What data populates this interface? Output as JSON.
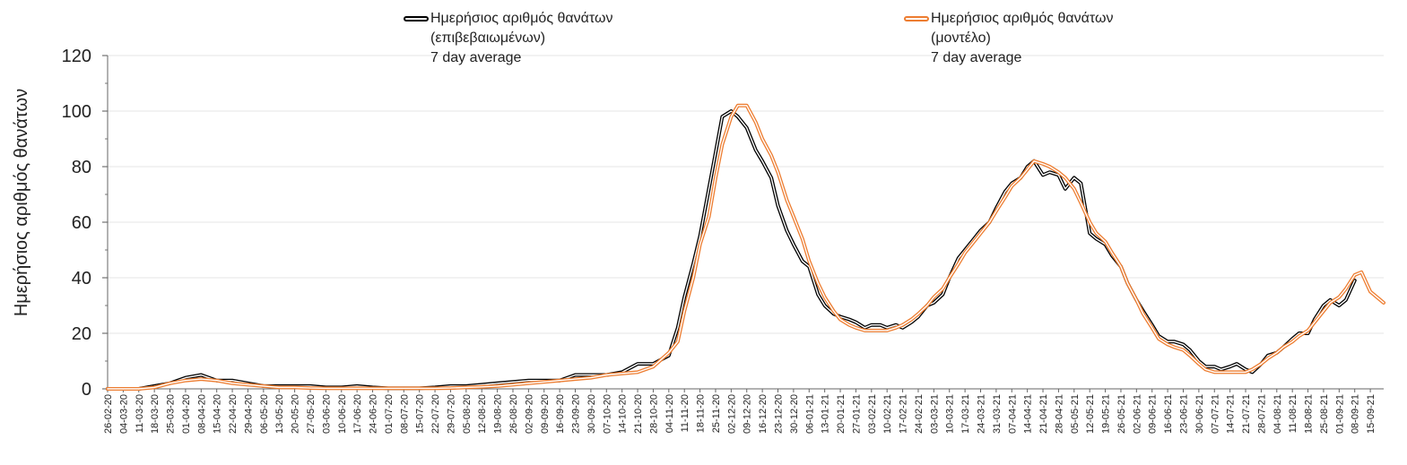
{
  "legend": {
    "series_a": {
      "line1": "Ημερήσιος αριθμός θανάτων",
      "line2": "(επιβεβαιωμένων)",
      "line3": "7 day average"
    },
    "series_b": {
      "line1": "Ημερήσιος αριθμός θανάτων",
      "line2": "(μοντέλο)",
      "line3": "7 day average"
    }
  },
  "chart_data": {
    "type": "line",
    "title": "",
    "xlabel": "",
    "ylabel": "Ημερήσιος αριθμός θανάτων",
    "ylim": [
      0,
      120
    ],
    "yticks": [
      0,
      20,
      40,
      60,
      80,
      100,
      120
    ],
    "grid": true,
    "legend_position": "top",
    "x_start": "2020-02-26",
    "x_end": "2021-09-21",
    "tick_labels": [
      "26-02-20",
      "04-03-20",
      "11-03-20",
      "18-03-20",
      "25-03-20",
      "01-04-20",
      "08-04-20",
      "15-04-20",
      "22-04-20",
      "29-04-20",
      "06-05-20",
      "13-05-20",
      "20-05-20",
      "27-05-20",
      "03-06-20",
      "10-06-20",
      "17-06-20",
      "24-06-20",
      "01-07-20",
      "08-07-20",
      "15-07-20",
      "22-07-20",
      "29-07-20",
      "05-08-20",
      "12-08-20",
      "19-08-20",
      "26-08-20",
      "02-09-20",
      "09-09-20",
      "16-09-20",
      "23-09-20",
      "30-09-20",
      "07-10-20",
      "14-10-20",
      "21-10-20",
      "28-10-20",
      "04-11-20",
      "11-11-20",
      "18-11-20",
      "25-11-20",
      "02-12-20",
      "09-12-20",
      "16-12-20",
      "23-12-20",
      "30-12-20",
      "06-01-21",
      "13-01-21",
      "20-01-21",
      "27-01-21",
      "03-02-21",
      "10-02-21",
      "17-02-21",
      "24-02-21",
      "03-03-21",
      "10-03-21",
      "17-03-21",
      "24-03-21",
      "31-03-21",
      "07-04-21",
      "14-04-21",
      "21-04-21",
      "28-04-21",
      "05-05-21",
      "12-05-21",
      "19-05-21",
      "26-05-21",
      "02-06-21",
      "09-06-21",
      "16-06-21",
      "23-06-21",
      "30-06-21",
      "07-07-21",
      "14-07-21",
      "21-07-21",
      "28-07-21",
      "04-08-21",
      "11-08-21",
      "18-08-21",
      "25-08-21",
      "01-09-21",
      "08-09-21",
      "15-09-21"
    ],
    "series": [
      {
        "name": "Ημερήσιος αριθμός θανάτων (επιβεβαιωμένων) 7 day average",
        "color": "#000000",
        "points": [
          [
            "2020-02-26",
            0
          ],
          [
            "2020-03-11",
            0
          ],
          [
            "2020-03-18",
            1
          ],
          [
            "2020-03-25",
            2
          ],
          [
            "2020-04-01",
            4
          ],
          [
            "2020-04-08",
            5
          ],
          [
            "2020-04-15",
            3
          ],
          [
            "2020-04-22",
            3
          ],
          [
            "2020-04-29",
            2
          ],
          [
            "2020-05-06",
            1
          ],
          [
            "2020-05-13",
            1
          ],
          [
            "2020-05-20",
            1
          ],
          [
            "2020-05-27",
            1
          ],
          [
            "2020-06-03",
            0.5
          ],
          [
            "2020-06-10",
            0.5
          ],
          [
            "2020-06-17",
            1
          ],
          [
            "2020-06-24",
            0.5
          ],
          [
            "2020-07-01",
            0.2
          ],
          [
            "2020-07-08",
            0.2
          ],
          [
            "2020-07-15",
            0.2
          ],
          [
            "2020-07-22",
            0.5
          ],
          [
            "2020-07-29",
            1
          ],
          [
            "2020-08-05",
            1
          ],
          [
            "2020-08-12",
            1.5
          ],
          [
            "2020-08-19",
            2
          ],
          [
            "2020-08-26",
            2.5
          ],
          [
            "2020-09-02",
            3
          ],
          [
            "2020-09-09",
            3
          ],
          [
            "2020-09-16",
            3
          ],
          [
            "2020-09-23",
            5
          ],
          [
            "2020-09-30",
            5
          ],
          [
            "2020-10-07",
            5
          ],
          [
            "2020-10-14",
            6
          ],
          [
            "2020-10-21",
            9
          ],
          [
            "2020-10-28",
            9
          ],
          [
            "2020-11-04",
            12
          ],
          [
            "2020-11-08",
            22
          ],
          [
            "2020-11-11",
            33
          ],
          [
            "2020-11-15",
            45
          ],
          [
            "2020-11-18",
            55
          ],
          [
            "2020-11-22",
            72
          ],
          [
            "2020-11-25",
            85
          ],
          [
            "2020-11-28",
            98
          ],
          [
            "2020-12-02",
            100
          ],
          [
            "2020-12-05",
            98
          ],
          [
            "2020-12-09",
            94
          ],
          [
            "2020-12-13",
            86
          ],
          [
            "2020-12-16",
            82
          ],
          [
            "2020-12-20",
            76
          ],
          [
            "2020-12-23",
            66
          ],
          [
            "2020-12-27",
            57
          ],
          [
            "2020-12-30",
            52
          ],
          [
            "2021-01-03",
            46
          ],
          [
            "2021-01-06",
            44
          ],
          [
            "2021-01-10",
            34
          ],
          [
            "2021-01-13",
            30
          ],
          [
            "2021-01-17",
            27
          ],
          [
            "2021-01-20",
            26
          ],
          [
            "2021-01-24",
            25
          ],
          [
            "2021-01-27",
            24
          ],
          [
            "2021-01-31",
            22
          ],
          [
            "2021-02-03",
            23
          ],
          [
            "2021-02-07",
            23
          ],
          [
            "2021-02-10",
            22
          ],
          [
            "2021-02-14",
            23
          ],
          [
            "2021-02-17",
            22
          ],
          [
            "2021-02-21",
            24
          ],
          [
            "2021-02-24",
            26
          ],
          [
            "2021-02-28",
            30
          ],
          [
            "2021-03-03",
            31
          ],
          [
            "2021-03-07",
            34
          ],
          [
            "2021-03-10",
            40
          ],
          [
            "2021-03-14",
            47
          ],
          [
            "2021-03-17",
            50
          ],
          [
            "2021-03-21",
            54
          ],
          [
            "2021-03-24",
            57
          ],
          [
            "2021-03-28",
            60
          ],
          [
            "2021-03-31",
            65
          ],
          [
            "2021-04-04",
            71
          ],
          [
            "2021-04-07",
            74
          ],
          [
            "2021-04-11",
            76
          ],
          [
            "2021-04-14",
            80
          ],
          [
            "2021-04-17",
            82
          ],
          [
            "2021-04-21",
            77
          ],
          [
            "2021-04-24",
            78
          ],
          [
            "2021-04-28",
            77
          ],
          [
            "2021-05-01",
            72
          ],
          [
            "2021-05-05",
            76
          ],
          [
            "2021-05-08",
            74
          ],
          [
            "2021-05-12",
            56
          ],
          [
            "2021-05-15",
            54
          ],
          [
            "2021-05-19",
            52
          ],
          [
            "2021-05-22",
            48
          ],
          [
            "2021-05-26",
            44
          ],
          [
            "2021-05-29",
            38
          ],
          [
            "2021-06-02",
            32
          ],
          [
            "2021-06-05",
            28
          ],
          [
            "2021-06-09",
            23
          ],
          [
            "2021-06-12",
            19
          ],
          [
            "2021-06-16",
            17
          ],
          [
            "2021-06-19",
            17
          ],
          [
            "2021-06-23",
            16
          ],
          [
            "2021-06-26",
            14
          ],
          [
            "2021-06-30",
            10
          ],
          [
            "2021-07-03",
            8
          ],
          [
            "2021-07-07",
            8
          ],
          [
            "2021-07-10",
            7
          ],
          [
            "2021-07-14",
            8
          ],
          [
            "2021-07-17",
            9
          ],
          [
            "2021-07-21",
            7
          ],
          [
            "2021-07-24",
            6
          ],
          [
            "2021-07-28",
            9
          ],
          [
            "2021-07-31",
            12
          ],
          [
            "2021-08-04",
            13
          ],
          [
            "2021-08-07",
            15
          ],
          [
            "2021-08-11",
            18
          ],
          [
            "2021-08-14",
            20
          ],
          [
            "2021-08-18",
            20
          ],
          [
            "2021-08-21",
            25
          ],
          [
            "2021-08-25",
            30
          ],
          [
            "2021-08-28",
            32
          ],
          [
            "2021-09-01",
            30
          ],
          [
            "2021-09-04",
            32
          ],
          [
            "2021-09-08",
            39
          ]
        ]
      },
      {
        "name": "Ημερήσιος αριθμός θανάτων (μοντέλο) 7 day average",
        "color": "#ed7d31",
        "points": [
          [
            "2020-02-26",
            0
          ],
          [
            "2020-03-11",
            0
          ],
          [
            "2020-03-18",
            0.5
          ],
          [
            "2020-03-25",
            2
          ],
          [
            "2020-04-01",
            3
          ],
          [
            "2020-04-08",
            3.5
          ],
          [
            "2020-04-15",
            3
          ],
          [
            "2020-04-22",
            2
          ],
          [
            "2020-04-29",
            1.5
          ],
          [
            "2020-05-06",
            1
          ],
          [
            "2020-05-13",
            0.5
          ],
          [
            "2020-05-20",
            0.5
          ],
          [
            "2020-05-27",
            0.3
          ],
          [
            "2020-06-03",
            0.2
          ],
          [
            "2020-06-10",
            0.2
          ],
          [
            "2020-06-17",
            0.2
          ],
          [
            "2020-06-24",
            0.2
          ],
          [
            "2020-07-01",
            0.2
          ],
          [
            "2020-07-08",
            0.2
          ],
          [
            "2020-07-15",
            0.2
          ],
          [
            "2020-07-22",
            0.2
          ],
          [
            "2020-07-29",
            0.3
          ],
          [
            "2020-08-05",
            0.5
          ],
          [
            "2020-08-12",
            0.7
          ],
          [
            "2020-08-19",
            1
          ],
          [
            "2020-08-26",
            1.5
          ],
          [
            "2020-09-02",
            2
          ],
          [
            "2020-09-09",
            2.5
          ],
          [
            "2020-09-16",
            3
          ],
          [
            "2020-09-23",
            3.5
          ],
          [
            "2020-09-30",
            4
          ],
          [
            "2020-10-07",
            5
          ],
          [
            "2020-10-14",
            5.5
          ],
          [
            "2020-10-21",
            6
          ],
          [
            "2020-10-28",
            8
          ],
          [
            "2020-11-04",
            13
          ],
          [
            "2020-11-08",
            17
          ],
          [
            "2020-11-11",
            28
          ],
          [
            "2020-11-15",
            40
          ],
          [
            "2020-11-18",
            52
          ],
          [
            "2020-11-22",
            62
          ],
          [
            "2020-11-25",
            76
          ],
          [
            "2020-11-28",
            88
          ],
          [
            "2020-12-02",
            98
          ],
          [
            "2020-12-05",
            102
          ],
          [
            "2020-12-09",
            102
          ],
          [
            "2020-12-13",
            96
          ],
          [
            "2020-12-16",
            90
          ],
          [
            "2020-12-20",
            84
          ],
          [
            "2020-12-23",
            78
          ],
          [
            "2020-12-27",
            68
          ],
          [
            "2020-12-30",
            62
          ],
          [
            "2021-01-03",
            54
          ],
          [
            "2021-01-06",
            46
          ],
          [
            "2021-01-10",
            38
          ],
          [
            "2021-01-13",
            33
          ],
          [
            "2021-01-17",
            28
          ],
          [
            "2021-01-20",
            25
          ],
          [
            "2021-01-24",
            23
          ],
          [
            "2021-01-27",
            22
          ],
          [
            "2021-01-31",
            21
          ],
          [
            "2021-02-03",
            21
          ],
          [
            "2021-02-07",
            21
          ],
          [
            "2021-02-10",
            21
          ],
          [
            "2021-02-14",
            22
          ],
          [
            "2021-02-17",
            23
          ],
          [
            "2021-02-21",
            25
          ],
          [
            "2021-02-24",
            27
          ],
          [
            "2021-02-28",
            30
          ],
          [
            "2021-03-03",
            33
          ],
          [
            "2021-03-07",
            36
          ],
          [
            "2021-03-10",
            40
          ],
          [
            "2021-03-14",
            45
          ],
          [
            "2021-03-17",
            49
          ],
          [
            "2021-03-21",
            53
          ],
          [
            "2021-03-24",
            56
          ],
          [
            "2021-03-28",
            60
          ],
          [
            "2021-03-31",
            64
          ],
          [
            "2021-04-04",
            69
          ],
          [
            "2021-04-07",
            73
          ],
          [
            "2021-04-11",
            76
          ],
          [
            "2021-04-14",
            79
          ],
          [
            "2021-04-17",
            82
          ],
          [
            "2021-04-21",
            81
          ],
          [
            "2021-04-24",
            80
          ],
          [
            "2021-04-28",
            78
          ],
          [
            "2021-05-01",
            76
          ],
          [
            "2021-05-05",
            72
          ],
          [
            "2021-05-08",
            67
          ],
          [
            "2021-05-12",
            60
          ],
          [
            "2021-05-15",
            56
          ],
          [
            "2021-05-19",
            53
          ],
          [
            "2021-05-22",
            49
          ],
          [
            "2021-05-26",
            44
          ],
          [
            "2021-05-29",
            38
          ],
          [
            "2021-06-02",
            32
          ],
          [
            "2021-06-05",
            27
          ],
          [
            "2021-06-09",
            22
          ],
          [
            "2021-06-12",
            18
          ],
          [
            "2021-06-16",
            16
          ],
          [
            "2021-06-19",
            15
          ],
          [
            "2021-06-23",
            14
          ],
          [
            "2021-06-26",
            12
          ],
          [
            "2021-06-30",
            9
          ],
          [
            "2021-07-03",
            7
          ],
          [
            "2021-07-07",
            6
          ],
          [
            "2021-07-10",
            6
          ],
          [
            "2021-07-14",
            6
          ],
          [
            "2021-07-17",
            6
          ],
          [
            "2021-07-21",
            6
          ],
          [
            "2021-07-24",
            7
          ],
          [
            "2021-07-28",
            9
          ],
          [
            "2021-07-31",
            11
          ],
          [
            "2021-08-04",
            13
          ],
          [
            "2021-08-07",
            15
          ],
          [
            "2021-08-11",
            17
          ],
          [
            "2021-08-14",
            19
          ],
          [
            "2021-08-18",
            21
          ],
          [
            "2021-08-21",
            24
          ],
          [
            "2021-08-25",
            28
          ],
          [
            "2021-08-28",
            31
          ],
          [
            "2021-09-01",
            33
          ],
          [
            "2021-09-04",
            36
          ],
          [
            "2021-09-08",
            41
          ],
          [
            "2021-09-11",
            42
          ],
          [
            "2021-09-15",
            35
          ],
          [
            "2021-09-18",
            33
          ],
          [
            "2021-09-21",
            31
          ]
        ]
      }
    ]
  }
}
